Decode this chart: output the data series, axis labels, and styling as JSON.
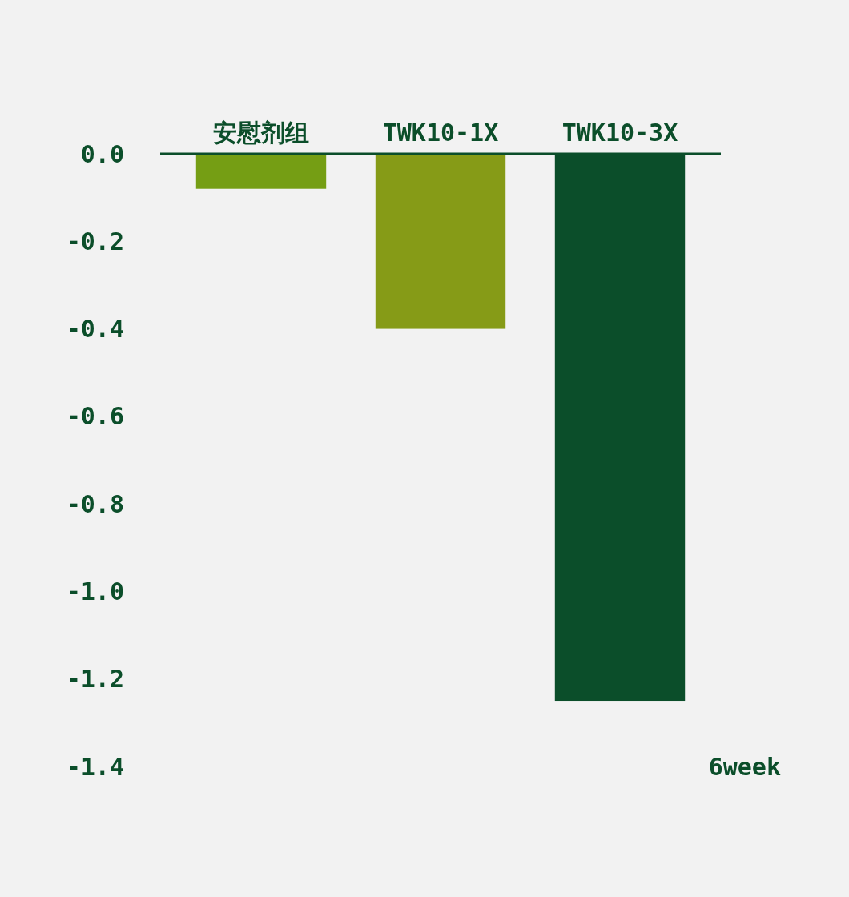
{
  "chart_data": {
    "type": "bar",
    "categories": [
      "安慰剂组",
      "TWK10-1X",
      "TWK10-3X"
    ],
    "values": [
      -0.08,
      -0.4,
      -1.25
    ],
    "colors": [
      "#759e14",
      "#869b17",
      "#0b4e2a"
    ],
    "ylim": [
      -1.4,
      0
    ],
    "yticks": [
      {
        "value": 0,
        "label": "0.0"
      },
      {
        "value": -0.2,
        "label": "-0.2"
      },
      {
        "value": -0.4,
        "label": "-0.4"
      },
      {
        "value": -0.6,
        "label": "-0.6"
      },
      {
        "value": -0.8,
        "label": "-0.8"
      },
      {
        "value": -1.0,
        "label": "-1.0"
      },
      {
        "value": -1.2,
        "label": "-1.2"
      },
      {
        "value": -1.4,
        "label": "-1.4"
      }
    ],
    "xlabel": "6week"
  }
}
